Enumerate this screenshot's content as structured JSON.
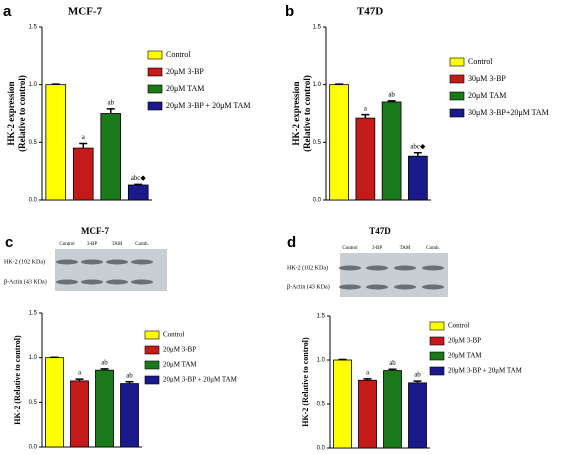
{
  "chart_data": [
    {
      "type": "bar",
      "panel": "a",
      "title": "MCF-7",
      "ylabel": [
        "HK-2 expression",
        "(Relative to control)"
      ],
      "categories": [
        "Control",
        "20μM 3-BP",
        "20μM TAM",
        "20μM 3-BP + 20μM TAM"
      ],
      "colors": [
        "#ffff00",
        "#c41a1a",
        "#1a7a1a",
        "#1a1a8c"
      ],
      "values": [
        1.0,
        0.45,
        0.75,
        0.13
      ],
      "errors": [
        0.005,
        0.04,
        0.04,
        0.005
      ],
      "annotations": [
        null,
        "a",
        "ab",
        "abc◆"
      ],
      "ylim": [
        0,
        1.5
      ],
      "yticks": [
        {
          "value": 0,
          "label": "0.0"
        },
        {
          "value": 0.5,
          "label": "0.5"
        },
        {
          "value": 1,
          "label": "1.0"
        },
        {
          "value": 1.5,
          "label": "1.5"
        }
      ]
    },
    {
      "type": "bar",
      "panel": "b",
      "title": "T47D",
      "ylabel": [
        "HK-2 expression",
        "(Relative to control)"
      ],
      "categories": [
        "Control",
        "30μM 3-BP",
        "20μM TAM",
        "30μM 3-BP+20μM TAM"
      ],
      "colors": [
        "#ffff00",
        "#c41a1a",
        "#1a7a1a",
        "#1a1a8c"
      ],
      "values": [
        1.0,
        0.71,
        0.85,
        0.38
      ],
      "errors": [
        0.005,
        0.03,
        0.01,
        0.03
      ],
      "annotations": [
        null,
        "a",
        "ab",
        "abc◆"
      ],
      "ylim": [
        0,
        1.5
      ],
      "yticks": [
        {
          "value": 0,
          "label": "0.0"
        },
        {
          "value": 0.5,
          "label": "0.5"
        },
        {
          "value": 1,
          "label": "1.0"
        },
        {
          "value": 1.5,
          "label": "1.5"
        }
      ]
    },
    {
      "type": "bar",
      "panel": "c",
      "ylabel": [
        "HK-2 (Relative to control)"
      ],
      "categories": [
        "Control",
        "20μM 3-BP",
        "20μM TAM",
        "20μM 3-BP + 20μM TAM"
      ],
      "colors": [
        "#ffff00",
        "#c41a1a",
        "#1a7a1a",
        "#1a1a8c"
      ],
      "values": [
        1.0,
        0.74,
        0.86,
        0.71
      ],
      "errors": [
        0.005,
        0.02,
        0.015,
        0.02
      ],
      "annotations": [
        null,
        "a",
        "ab",
        "ab"
      ],
      "ylim": [
        0,
        1.5
      ],
      "yticks": [
        {
          "value": 0,
          "label": "0.0"
        },
        {
          "value": 0.5,
          "label": "0.5"
        },
        {
          "value": 1,
          "label": "1.0"
        },
        {
          "value": 1.5,
          "label": "1.5"
        }
      ]
    },
    {
      "type": "bar",
      "panel": "d",
      "ylabel": [
        "HK-2 (Relative to control)"
      ],
      "categories": [
        "Control",
        "20μM 3-BP",
        "20μM TAM",
        "20μM 3-BP + 20μM TAM"
      ],
      "colors": [
        "#ffff00",
        "#c41a1a",
        "#1a7a1a",
        "#1a1a8c"
      ],
      "values": [
        1.0,
        0.77,
        0.88,
        0.74
      ],
      "errors": [
        0.005,
        0.015,
        0.015,
        0.02
      ],
      "annotations": [
        null,
        "a",
        "ab",
        "ab"
      ],
      "ylim": [
        0,
        1.5
      ],
      "yticks": [
        {
          "value": 0,
          "label": "0.0"
        },
        {
          "value": 0.5,
          "label": "0.5"
        },
        {
          "value": 1,
          "label": "1.0"
        },
        {
          "value": 1.5,
          "label": "1.5"
        }
      ]
    }
  ],
  "blots": [
    {
      "title": "MCF-7",
      "lanes": [
        "Control",
        "3-BP",
        "TAM",
        "Comb."
      ],
      "rows": [
        "HK-2 (102 KDa)",
        "β-Actin (43 KDa)"
      ]
    },
    {
      "title": "T47D",
      "lanes": [
        "Control",
        "3-BP",
        "TAM",
        "Comb."
      ],
      "rows": [
        "HK-2 (102 KDa)",
        "β-Actin (43 KDa)"
      ]
    }
  ]
}
